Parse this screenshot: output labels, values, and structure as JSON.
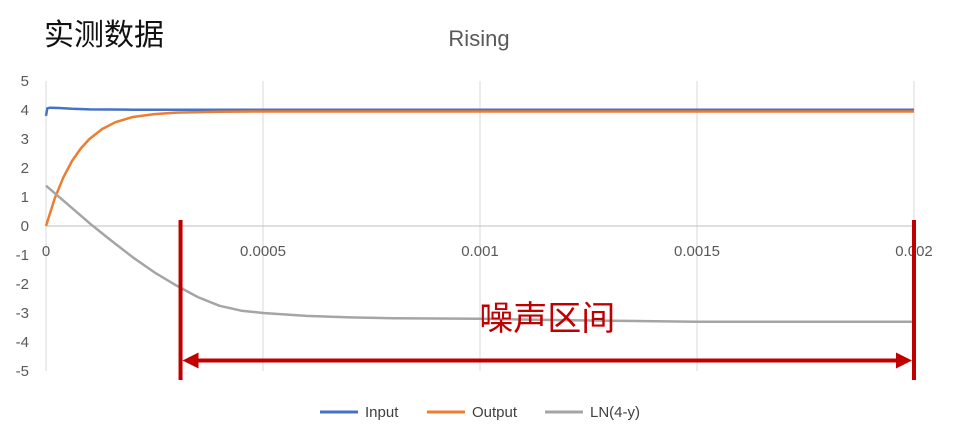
{
  "heading": "实测数据",
  "chart_data": {
    "type": "line",
    "title": "Rising",
    "xlabel": "",
    "ylabel": "",
    "xlim": [
      0,
      0.002
    ],
    "ylim": [
      -5,
      5
    ],
    "x_ticks": [
      0,
      0.0005,
      0.001,
      0.0015,
      0.002
    ],
    "x_tick_labels": [
      "0",
      "0.0005",
      "0.001",
      "0.0015",
      "0.002"
    ],
    "y_ticks": [
      5,
      4,
      3,
      2,
      1,
      0,
      -1,
      -2,
      -3,
      -4,
      -5
    ],
    "y_tick_labels": [
      "5",
      "4",
      "3",
      "2",
      "1",
      "0",
      "-1",
      "-2",
      "-3",
      "-4",
      "-5"
    ],
    "grid": "vertical",
    "legend_position": "bottom",
    "series": [
      {
        "name": "Input",
        "color": "#4472c4",
        "x": [
          0,
          3e-06,
          1e-05,
          3e-05,
          6e-05,
          0.0001,
          0.0002,
          0.0005,
          0.001,
          0.0015,
          0.002
        ],
        "y": [
          3.8,
          4.06,
          4.08,
          4.07,
          4.04,
          4.02,
          4.01,
          4.01,
          4.01,
          4.01,
          4.01
        ]
      },
      {
        "name": "Output",
        "color": "#ed7d31",
        "x": [
          0,
          2e-05,
          4e-05,
          6e-05,
          8e-05,
          0.0001,
          0.00013,
          0.00016,
          0.0002,
          0.00025,
          0.0003,
          0.0004,
          0.0005,
          0.0007,
          0.001,
          0.0015,
          0.002
        ],
        "y": [
          0,
          0.95,
          1.68,
          2.24,
          2.67,
          3.0,
          3.35,
          3.58,
          3.76,
          3.86,
          3.91,
          3.94,
          3.95,
          3.95,
          3.95,
          3.95,
          3.95
        ]
      },
      {
        "name": "LN(4-y)",
        "color": "#a5a5a5",
        "x": [
          0,
          5e-05,
          0.0001,
          0.00015,
          0.0002,
          0.00025,
          0.0003,
          0.00035,
          0.0004,
          0.00045,
          0.0005,
          0.0006,
          0.0007,
          0.0008,
          0.001,
          0.0012,
          0.0015,
          0.0018,
          0.002
        ],
        "y": [
          1.39,
          0.75,
          0.1,
          -0.5,
          -1.08,
          -1.6,
          -2.05,
          -2.45,
          -2.75,
          -2.92,
          -3.0,
          -3.1,
          -3.15,
          -3.18,
          -3.2,
          -3.25,
          -3.3,
          -3.3,
          -3.3
        ]
      }
    ],
    "annotation": {
      "label": "噪声区间",
      "x_start": 0.00031,
      "x_end": 0.002,
      "color": "#c00000"
    }
  }
}
